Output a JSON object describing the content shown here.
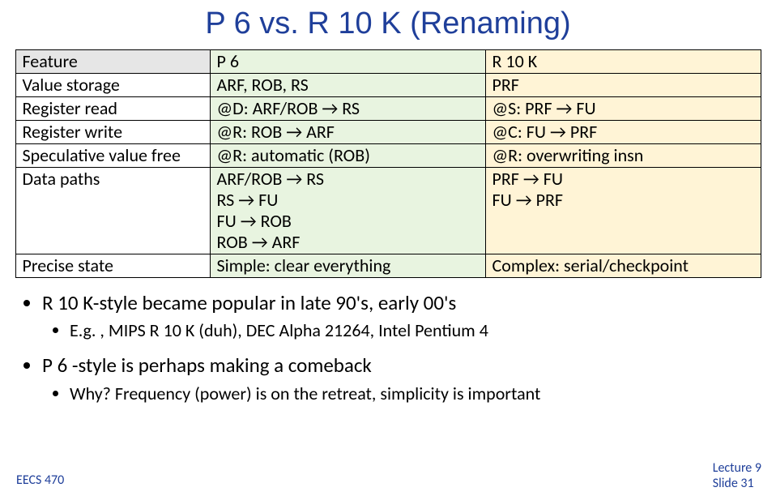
{
  "title": {
    "text": "P 6 vs. R 10 K (Renaming)",
    "color": "#1f3f9a",
    "fontsize": 38
  },
  "table": {
    "col_bg": {
      "header": "#e6e6e6",
      "feature": "#ffffff",
      "p6": "#e8f4e0",
      "r10k": "#fff4d6"
    },
    "rows": {
      "r0": {
        "feature": "Feature",
        "p6": "P 6",
        "r10": "R 10 K"
      },
      "r1": {
        "feature": "Value storage",
        "p6": "ARF, ROB, RS",
        "r10": "PRF"
      },
      "r2": {
        "feature": "Register read",
        "p6": "@D: ARF/ROB → RS",
        "r10": "@S: PRF → FU"
      },
      "r3": {
        "feature": "Register write",
        "p6": "@R: ROB → ARF",
        "r10": "@C: FU → PRF"
      },
      "r4": {
        "feature": "Speculative value free",
        "p6": "@R: automatic (ROB)",
        "r10": "@R: overwriting insn"
      },
      "r5": {
        "feature": "Data paths",
        "p6": "ARF/ROB → RS\nRS → FU\nFU → ROB\nROB → ARF",
        "r10": "PRF → FU\nFU → PRF"
      },
      "r6": {
        "feature": "Precise state",
        "p6": "Simple: clear everything",
        "r10": "Complex: serial/checkpoint"
      }
    }
  },
  "bullets": {
    "b1": "R 10 K-style became popular in late 90's, early 00's",
    "b1_sub": "E.g. , MIPS R 10 K (duh), DEC Alpha 21264, Intel Pentium 4",
    "b2": "P 6 -style is perhaps making a comeback",
    "b2_sub": "Why? Frequency (power) is on the retreat, simplicity is important"
  },
  "footer": {
    "left": "EECS 470",
    "right_line1": "Lecture 9",
    "right_line2": "Slide 31"
  }
}
